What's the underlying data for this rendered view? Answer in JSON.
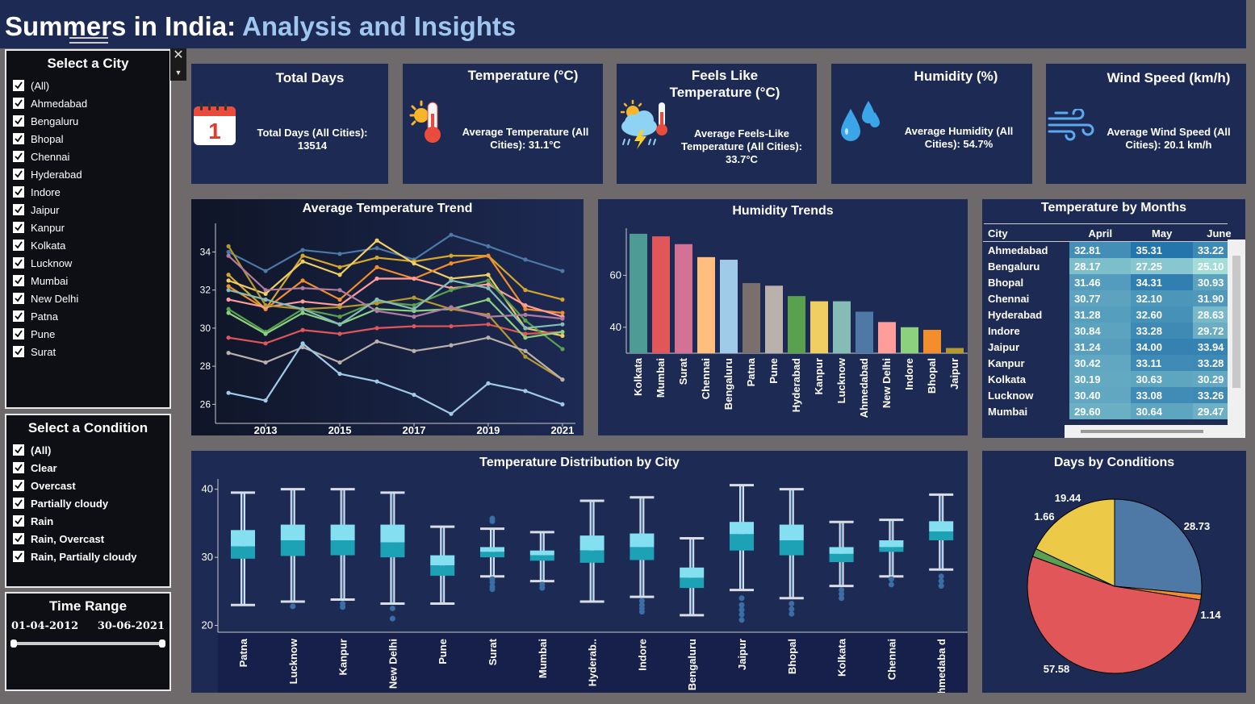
{
  "header": {
    "title_plain": "Summers in India: ",
    "title_accent": "Analysis and Insights"
  },
  "city_filter": {
    "title": "Select a City",
    "items": [
      "(All)",
      "Ahmedabad",
      "Bengaluru",
      "Bhopal",
      "Chennai",
      "Hyderabad",
      "Indore",
      "Jaipur",
      "Kanpur",
      "Kolkata",
      "Lucknow",
      "Mumbai",
      "New Delhi",
      "Patna",
      "Pune",
      "Surat"
    ]
  },
  "condition_filter": {
    "title": "Select a Condition",
    "items": [
      "(All)",
      "Clear",
      "Overcast",
      "Partially cloudy",
      "Rain",
      "Rain, Overcast",
      "Rain, Partially cloudy"
    ]
  },
  "time_range": {
    "title": "Time Range",
    "start": "01-04-2012",
    "end": "30-06-2021",
    "start_fraction": 0,
    "end_fraction": 1
  },
  "kpis": [
    {
      "title": "Total Days",
      "text": "Total Days (All Cities): 13514",
      "icon": "calendar-icon",
      "icon_text": "1"
    },
    {
      "title": "Temperature (°C)",
      "text": "Average Temperature (All Cities): 31.1°C",
      "icon": "thermometer-sun-icon"
    },
    {
      "title": "Feels Like Temperature (°C)",
      "text": "Average Feels-Like Temperature (All Cities): 33.7°C",
      "icon": "storm-thermometer-icon"
    },
    {
      "title": "Humidity (%)",
      "text": "Average Humidity (All Cities): 54.7%",
      "icon": "water-drops-icon"
    },
    {
      "title": "Wind Speed (km/h)",
      "text": "Average Wind Speed (All Cities): 20.1 km/h",
      "icon": "wind-icon"
    }
  ],
  "colors": {
    "accent": "#9fc6ef",
    "panel": "#1d2a54",
    "background": "#6e6a6b"
  },
  "chart_data": [
    {
      "type": "line",
      "title": "Average Temperature Trend",
      "x": [
        2012,
        2013,
        2014,
        2015,
        2016,
        2017,
        2018,
        2019,
        2020,
        2021
      ],
      "xticks": [
        "2013",
        "2015",
        "2017",
        "2019",
        "2021"
      ],
      "xtick_values": [
        2013,
        2015,
        2017,
        2019,
        2021
      ],
      "ylim": [
        25,
        35.5
      ],
      "yticks": [
        26,
        28,
        30,
        32,
        34
      ],
      "series": [
        {
          "color": "#4e79a7",
          "values": [
            34.0,
            33.0,
            34.1,
            33.9,
            34.2,
            33.6,
            34.9,
            34.3,
            33.6,
            33.0
          ]
        },
        {
          "color": "#d4a72c",
          "values": [
            32.8,
            31.0,
            33.8,
            33.2,
            33.7,
            33.5,
            33.8,
            33.8,
            32.0,
            31.5
          ]
        },
        {
          "color": "#f1ce63",
          "values": [
            32.5,
            31.8,
            33.5,
            32.8,
            34.6,
            33.4,
            32.6,
            32.8,
            30.0,
            29.6
          ]
        },
        {
          "color": "#f28e2b",
          "values": [
            32.2,
            31.0,
            32.5,
            31.5,
            33.2,
            32.6,
            33.4,
            33.8,
            31.0,
            30.8
          ]
        },
        {
          "color": "#ff9d9a",
          "values": [
            31.5,
            31.1,
            31.4,
            31.2,
            32.6,
            32.6,
            32.1,
            32.3,
            31.2,
            30.6
          ]
        },
        {
          "color": "#e15759",
          "values": [
            29.5,
            29.2,
            29.9,
            29.7,
            30.0,
            30.1,
            30.1,
            30.2,
            29.7,
            29.8
          ]
        },
        {
          "color": "#59a14f",
          "values": [
            31.0,
            29.8,
            31.0,
            30.6,
            31.4,
            31.2,
            32.0,
            32.5,
            30.4,
            28.9
          ]
        },
        {
          "color": "#8cd17d",
          "values": [
            30.8,
            29.7,
            30.8,
            30.2,
            31.0,
            30.9,
            31.0,
            31.5,
            29.5,
            29.8
          ]
        },
        {
          "color": "#b6992d",
          "values": [
            34.3,
            31.2,
            31.0,
            31.1,
            31.3,
            31.6,
            31.0,
            30.7,
            28.5,
            27.3
          ]
        },
        {
          "color": "#b07aa1",
          "values": [
            33.8,
            32.0,
            32.1,
            32.0,
            30.9,
            30.6,
            31.1,
            30.6,
            30.7,
            30.5
          ]
        },
        {
          "color": "#bab0ac",
          "values": [
            28.7,
            28.2,
            29.0,
            28.2,
            29.3,
            28.8,
            29.1,
            29.5,
            28.8,
            27.3
          ]
        },
        {
          "color": "#86bcb6",
          "values": [
            32.0,
            31.5,
            31.0,
            30.2,
            31.5,
            31.0,
            32.5,
            32.1,
            30.0,
            30.2
          ]
        },
        {
          "color": "#a0cbe8",
          "values": [
            26.6,
            26.2,
            29.2,
            27.6,
            27.2,
            26.5,
            25.5,
            27.1,
            26.7,
            26.0
          ]
        }
      ]
    },
    {
      "type": "bar",
      "title": "Humidity Trends",
      "categories": [
        "Kolkata",
        "Mumbai",
        "Surat",
        "Chennai",
        "Bengaluru",
        "Patna",
        "Pune",
        "Hyderabad",
        "Kanpur",
        "Lucknow",
        "Ahmedabad",
        "New Delhi",
        "Indore",
        "Bhopal",
        "Jaipur"
      ],
      "values": [
        76,
        75,
        72,
        67,
        66,
        57,
        56,
        52,
        50,
        50,
        46,
        42,
        40,
        39,
        32
      ],
      "colors": [
        "#4e9a94",
        "#e15759",
        "#d37295",
        "#ffbe7d",
        "#a0cbe8",
        "#79706e",
        "#bab0ac",
        "#59a14f",
        "#f1ce63",
        "#86bcb6",
        "#4e79a7",
        "#ff9d9a",
        "#8cd17d",
        "#f28e2b",
        "#b6992d"
      ],
      "ylim": [
        30,
        80
      ],
      "yticks": [
        40,
        60
      ]
    },
    {
      "type": "table",
      "title": "Temperature by Months",
      "columns": [
        "City",
        "April",
        "May",
        "June"
      ],
      "rows": [
        [
          "Ahmedabad",
          "32.81",
          "35.31",
          "33.22"
        ],
        [
          "Bengaluru",
          "28.17",
          "27.25",
          "25.10"
        ],
        [
          "Bhopal",
          "31.46",
          "34.31",
          "30.93"
        ],
        [
          "Chennai",
          "30.77",
          "32.10",
          "31.90"
        ],
        [
          "Hyderabad",
          "31.28",
          "32.60",
          "28.63"
        ],
        [
          "Indore",
          "30.84",
          "33.28",
          "29.72"
        ],
        [
          "Jaipur",
          "31.24",
          "34.00",
          "33.94"
        ],
        [
          "Kanpur",
          "30.42",
          "33.11",
          "33.28"
        ],
        [
          "Kolkata",
          "30.19",
          "30.63",
          "30.29"
        ],
        [
          "Lucknow",
          "30.40",
          "33.08",
          "33.26"
        ],
        [
          "Mumbai",
          "29.60",
          "30.64",
          "29.47"
        ]
      ],
      "value_range": [
        25,
        36
      ]
    },
    {
      "type": "box",
      "title": "Temperature Distribution by City",
      "categories": [
        "Patna",
        "Lucknow",
        "Kanpur",
        "New Delhi",
        "Pune",
        "Surat",
        "Mumbai",
        "Hyderab..",
        "Indore",
        "Bengaluru",
        "Jaipur",
        "Bhopal",
        "Kolkata",
        "Chennai",
        "Ahmedaba d"
      ],
      "ylim": [
        19,
        41.5
      ],
      "yticks": [
        20,
        30,
        40
      ],
      "boxes": [
        {
          "min": 23.0,
          "q1": 29.8,
          "median": 31.6,
          "q3": 34.0,
          "max": 39.5,
          "outliers": []
        },
        {
          "min": 23.5,
          "q1": 30.2,
          "median": 32.5,
          "q3": 34.8,
          "max": 40.0,
          "outliers": [
            22.8
          ]
        },
        {
          "min": 23.8,
          "q1": 30.3,
          "median": 32.5,
          "q3": 34.8,
          "max": 40.0,
          "outliers": [
            23.2,
            22.7
          ]
        },
        {
          "min": 23.2,
          "q1": 30.0,
          "median": 32.2,
          "q3": 34.8,
          "max": 39.5,
          "outliers": [
            22.5,
            21.0
          ]
        },
        {
          "min": 23.2,
          "q1": 27.3,
          "median": 28.8,
          "q3": 30.3,
          "max": 34.5,
          "outliers": []
        },
        {
          "min": 27.2,
          "q1": 30.0,
          "median": 30.8,
          "q3": 31.5,
          "max": 34.2,
          "outliers": [
            26.8,
            26.3,
            25.7,
            25.3,
            35.3,
            35.7
          ]
        },
        {
          "min": 26.5,
          "q1": 29.5,
          "median": 30.3,
          "q3": 31.0,
          "max": 33.7,
          "outliers": [
            26.0,
            25.5
          ]
        },
        {
          "min": 23.5,
          "q1": 29.2,
          "median": 31.0,
          "q3": 33.2,
          "max": 38.3,
          "outliers": []
        },
        {
          "min": 24.2,
          "q1": 29.6,
          "median": 31.5,
          "q3": 33.5,
          "max": 38.8,
          "outliers": [
            23.6,
            23.0,
            22.5,
            22.0
          ]
        },
        {
          "min": 21.5,
          "q1": 25.5,
          "median": 27.0,
          "q3": 28.5,
          "max": 32.8,
          "outliers": []
        },
        {
          "min": 25.2,
          "q1": 31.0,
          "median": 33.4,
          "q3": 35.2,
          "max": 40.6,
          "outliers": [
            24.0,
            23.0,
            22.3,
            21.6,
            20.8
          ]
        },
        {
          "min": 24.0,
          "q1": 30.3,
          "median": 32.5,
          "q3": 34.8,
          "max": 40.0,
          "outliers": [
            23.2,
            22.4,
            21.7
          ]
        },
        {
          "min": 25.8,
          "q1": 29.3,
          "median": 30.5,
          "q3": 31.5,
          "max": 35.2,
          "outliers": [
            25.2,
            24.6,
            24.0
          ]
        },
        {
          "min": 27.2,
          "q1": 30.8,
          "median": 31.5,
          "q3": 32.5,
          "max": 35.5,
          "outliers": [
            26.8,
            26.0
          ]
        },
        {
          "min": 28.2,
          "q1": 32.5,
          "median": 33.8,
          "q3": 35.3,
          "max": 39.2,
          "outliers": [
            27.2,
            26.5,
            25.8
          ]
        }
      ]
    },
    {
      "type": "pie",
      "title": "Days by Conditions",
      "values": [
        28.73,
        1.14,
        57.58,
        1.66,
        19.44
      ],
      "labels": [
        "28.73",
        "1.14",
        "57.58",
        "1.66",
        "19.44"
      ],
      "colors": [
        "#4e79a7",
        "#f28e2b",
        "#e15759",
        "#59a14f",
        "#edc948"
      ]
    }
  ]
}
